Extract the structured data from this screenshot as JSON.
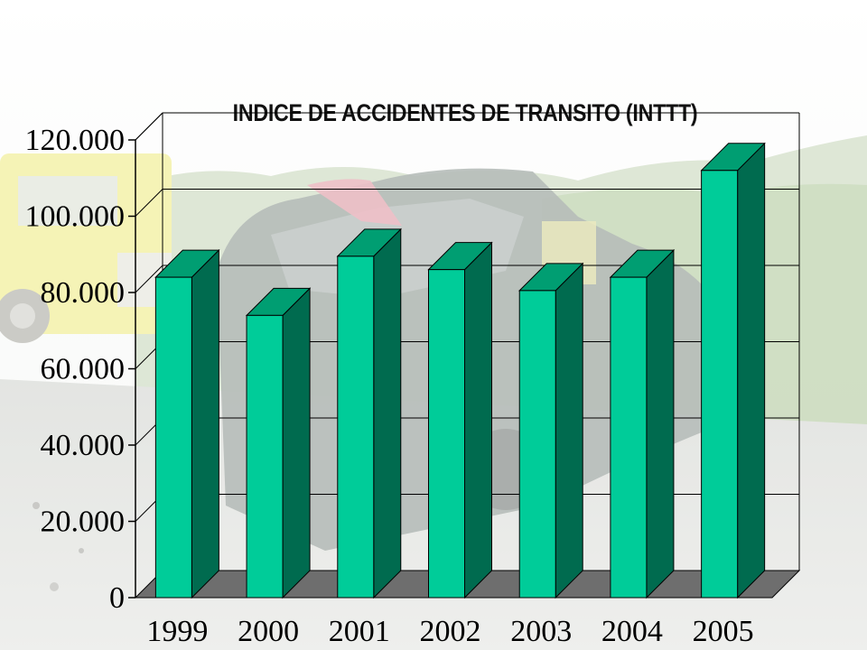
{
  "chart_data": {
    "type": "bar",
    "title": "INDICE DE ACCIDENTES DE TRANSITO (INTTT)",
    "xlabel": "",
    "ylabel": "",
    "categories": [
      "1999",
      "2000",
      "2001",
      "2002",
      "2003",
      "2004",
      "2005"
    ],
    "values": [
      84000,
      74000,
      89500,
      86000,
      80500,
      84000,
      112000
    ],
    "ylim": [
      0,
      120000
    ],
    "yticks": [
      0,
      20000,
      40000,
      60000,
      80000,
      100000,
      120000
    ],
    "ytick_labels": [
      "0",
      "20.000",
      "40.000",
      "60.000",
      "80.000",
      "100.000",
      "120.000"
    ],
    "grid": true,
    "style": "3d-bar",
    "colors": {
      "bar_front": "#00cc99",
      "bar_side": "#006b4f",
      "bar_top": "#009e72",
      "floor": "#6e6e6e",
      "gridline": "#000000"
    }
  }
}
